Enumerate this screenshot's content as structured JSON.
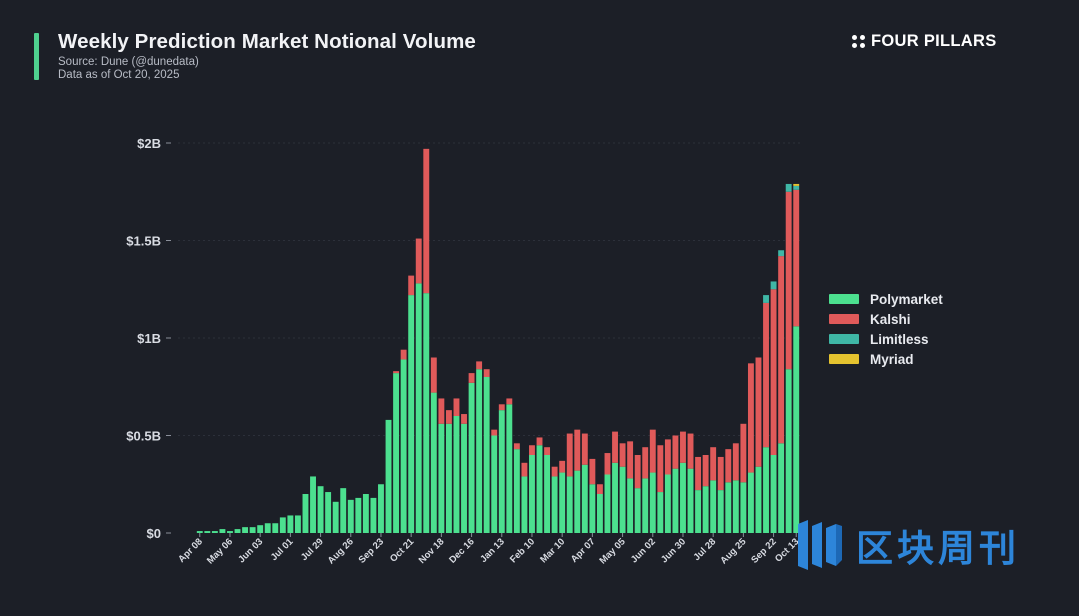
{
  "header": {
    "title": "Weekly Prediction Market Notional Volume",
    "source": "Source: Dune (@dunedata)",
    "data_as_of": "Data as of Oct 20, 2025"
  },
  "brand": {
    "name": "FOUR PILLARS",
    "icon": "four-dots-icon"
  },
  "watermark": {
    "text": "区块周刊",
    "icon": "blockweekly-logo-icon",
    "color": "#2f8ee9"
  },
  "colors": {
    "background": "#1c1f27",
    "accent": "#4fd08f",
    "Polymarket": "#4ce08f",
    "Kalshi": "#e05a5a",
    "Limitless": "#3fb7a6",
    "Myriad": "#e5c32f"
  },
  "chart_data": {
    "type": "bar",
    "stacked": true,
    "title": "Weekly Prediction Market Notional Volume",
    "ylim": [
      0,
      2
    ],
    "yunit": "billions USD",
    "yticks": [
      0,
      0.5,
      1,
      1.5,
      2
    ],
    "ytick_labels": [
      "$0",
      "$0.5B",
      "$1B",
      "$1.5B",
      "$2B"
    ],
    "grid": true,
    "legend_position": "right",
    "x_tick_labels": [
      "Apr 08",
      "May 06",
      "Jun 03",
      "Jul 01",
      "Jul 29",
      "Aug 26",
      "Sep 23",
      "Oct 21",
      "Nov 18",
      "Dec 16",
      "Jan 13",
      "Feb 10",
      "Mar 10",
      "Apr 07",
      "May 05",
      "Jun 02",
      "Jun 30",
      "Jul 28",
      "Aug 25",
      "Sep 22",
      "Oct 13"
    ],
    "x_tick_index": [
      0,
      4,
      8,
      12,
      16,
      20,
      24,
      28,
      32,
      36,
      40,
      44,
      48,
      52,
      56,
      60,
      64,
      68,
      72,
      76,
      79
    ],
    "series": [
      {
        "name": "Polymarket",
        "values": [
          0.01,
          0.01,
          0.01,
          0.02,
          0.01,
          0.02,
          0.03,
          0.03,
          0.04,
          0.05,
          0.05,
          0.08,
          0.09,
          0.09,
          0.2,
          0.29,
          0.24,
          0.21,
          0.16,
          0.23,
          0.17,
          0.18,
          0.2,
          0.18,
          0.25,
          0.58,
          0.82,
          0.89,
          1.22,
          1.28,
          1.23,
          0.72,
          0.56,
          0.56,
          0.6,
          0.56,
          0.77,
          0.84,
          0.8,
          0.5,
          0.63,
          0.66,
          0.43,
          0.29,
          0.4,
          0.45,
          0.4,
          0.29,
          0.31,
          0.29,
          0.32,
          0.35,
          0.25,
          0.2,
          0.3,
          0.36,
          0.34,
          0.28,
          0.23,
          0.28,
          0.31,
          0.21,
          0.3,
          0.33,
          0.36,
          0.33,
          0.22,
          0.24,
          0.27,
          0.22,
          0.26,
          0.27,
          0.26,
          0.31,
          0.34,
          0.44,
          0.4,
          0.46,
          0.84,
          1.06
        ]
      },
      {
        "name": "Kalshi",
        "values": [
          0,
          0,
          0,
          0,
          0,
          0,
          0,
          0,
          0,
          0,
          0,
          0,
          0,
          0,
          0,
          0,
          0,
          0,
          0,
          0,
          0,
          0,
          0,
          0,
          0,
          0,
          0.01,
          0.05,
          0.1,
          0.23,
          0.74,
          0.18,
          0.13,
          0.07,
          0.09,
          0.05,
          0.05,
          0.04,
          0.04,
          0.03,
          0.03,
          0.03,
          0.03,
          0.07,
          0.05,
          0.04,
          0.04,
          0.05,
          0.06,
          0.22,
          0.21,
          0.16,
          0.13,
          0.05,
          0.11,
          0.16,
          0.12,
          0.19,
          0.17,
          0.16,
          0.22,
          0.24,
          0.18,
          0.17,
          0.16,
          0.18,
          0.17,
          0.16,
          0.17,
          0.17,
          0.17,
          0.19,
          0.3,
          0.56,
          0.56,
          0.74,
          0.85,
          0.96,
          0.91,
          0.7
        ]
      },
      {
        "name": "Limitless",
        "values": [
          0,
          0,
          0,
          0,
          0,
          0,
          0,
          0,
          0,
          0,
          0,
          0,
          0,
          0,
          0,
          0,
          0,
          0,
          0,
          0,
          0,
          0,
          0,
          0,
          0,
          0,
          0,
          0,
          0,
          0,
          0,
          0,
          0,
          0,
          0,
          0,
          0,
          0,
          0,
          0,
          0,
          0,
          0,
          0,
          0,
          0,
          0,
          0,
          0,
          0,
          0,
          0,
          0,
          0,
          0,
          0,
          0,
          0,
          0,
          0,
          0,
          0,
          0,
          0,
          0,
          0,
          0,
          0,
          0,
          0,
          0,
          0,
          0,
          0,
          0,
          0.04,
          0.04,
          0.03,
          0.04,
          0.02
        ]
      },
      {
        "name": "Myriad",
        "values": [
          0,
          0,
          0,
          0,
          0,
          0,
          0,
          0,
          0,
          0,
          0,
          0,
          0,
          0,
          0,
          0,
          0,
          0,
          0,
          0,
          0,
          0,
          0,
          0,
          0,
          0,
          0,
          0,
          0,
          0,
          0,
          0,
          0,
          0,
          0,
          0,
          0,
          0,
          0,
          0,
          0,
          0,
          0,
          0,
          0,
          0,
          0,
          0,
          0,
          0,
          0,
          0,
          0,
          0,
          0,
          0,
          0,
          0,
          0,
          0,
          0,
          0,
          0,
          0,
          0,
          0,
          0,
          0,
          0,
          0,
          0,
          0,
          0,
          0,
          0,
          0,
          0,
          0,
          0,
          0.01
        ]
      }
    ]
  }
}
